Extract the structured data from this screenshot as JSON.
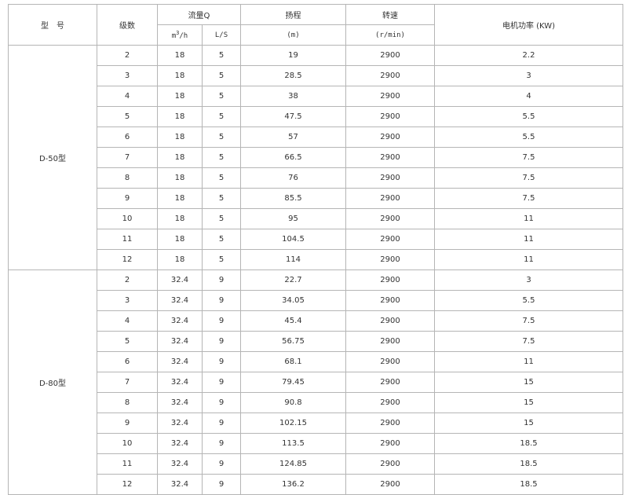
{
  "header": {
    "model": "型　号",
    "stages": "级数",
    "flow": "流量Q",
    "flow_m3h_base": "m",
    "flow_m3h_exp": "3",
    "flow_m3h_rest": "/h",
    "flow_ls": "L/S",
    "head": "扬程",
    "head_unit": "(m)",
    "speed": "转速",
    "speed_unit": "(r/min)",
    "power": "电机功率 (KW)"
  },
  "groups": [
    {
      "model": "D-50型",
      "rows": [
        [
          "2",
          "18",
          "5",
          "19",
          "2900",
          "2.2"
        ],
        [
          "3",
          "18",
          "5",
          "28.5",
          "2900",
          "3"
        ],
        [
          "4",
          "18",
          "5",
          "38",
          "2900",
          "4"
        ],
        [
          "5",
          "18",
          "5",
          "47.5",
          "2900",
          "5.5"
        ],
        [
          "6",
          "18",
          "5",
          "57",
          "2900",
          "5.5"
        ],
        [
          "7",
          "18",
          "5",
          "66.5",
          "2900",
          "7.5"
        ],
        [
          "8",
          "18",
          "5",
          "76",
          "2900",
          "7.5"
        ],
        [
          "9",
          "18",
          "5",
          "85.5",
          "2900",
          "7.5"
        ],
        [
          "10",
          "18",
          "5",
          "95",
          "2900",
          "11"
        ],
        [
          "11",
          "18",
          "5",
          "104.5",
          "2900",
          "11"
        ],
        [
          "12",
          "18",
          "5",
          "114",
          "2900",
          "11"
        ]
      ]
    },
    {
      "model": "D-80型",
      "rows": [
        [
          "2",
          "32.4",
          "9",
          "22.7",
          "2900",
          "3"
        ],
        [
          "3",
          "32.4",
          "9",
          "34.05",
          "2900",
          "5.5"
        ],
        [
          "4",
          "32.4",
          "9",
          "45.4",
          "2900",
          "7.5"
        ],
        [
          "5",
          "32.4",
          "9",
          "56.75",
          "2900",
          "7.5"
        ],
        [
          "6",
          "32.4",
          "9",
          "68.1",
          "2900",
          "11"
        ],
        [
          "7",
          "32.4",
          "9",
          "79.45",
          "2900",
          "15"
        ],
        [
          "8",
          "32.4",
          "9",
          "90.8",
          "2900",
          "15"
        ],
        [
          "9",
          "32.4",
          "9",
          "102.15",
          "2900",
          "15"
        ],
        [
          "10",
          "32.4",
          "9",
          "113.5",
          "2900",
          "18.5"
        ],
        [
          "11",
          "32.4",
          "9",
          "124.85",
          "2900",
          "18.5"
        ],
        [
          "12",
          "32.4",
          "9",
          "136.2",
          "2900",
          "18.5"
        ]
      ]
    }
  ]
}
